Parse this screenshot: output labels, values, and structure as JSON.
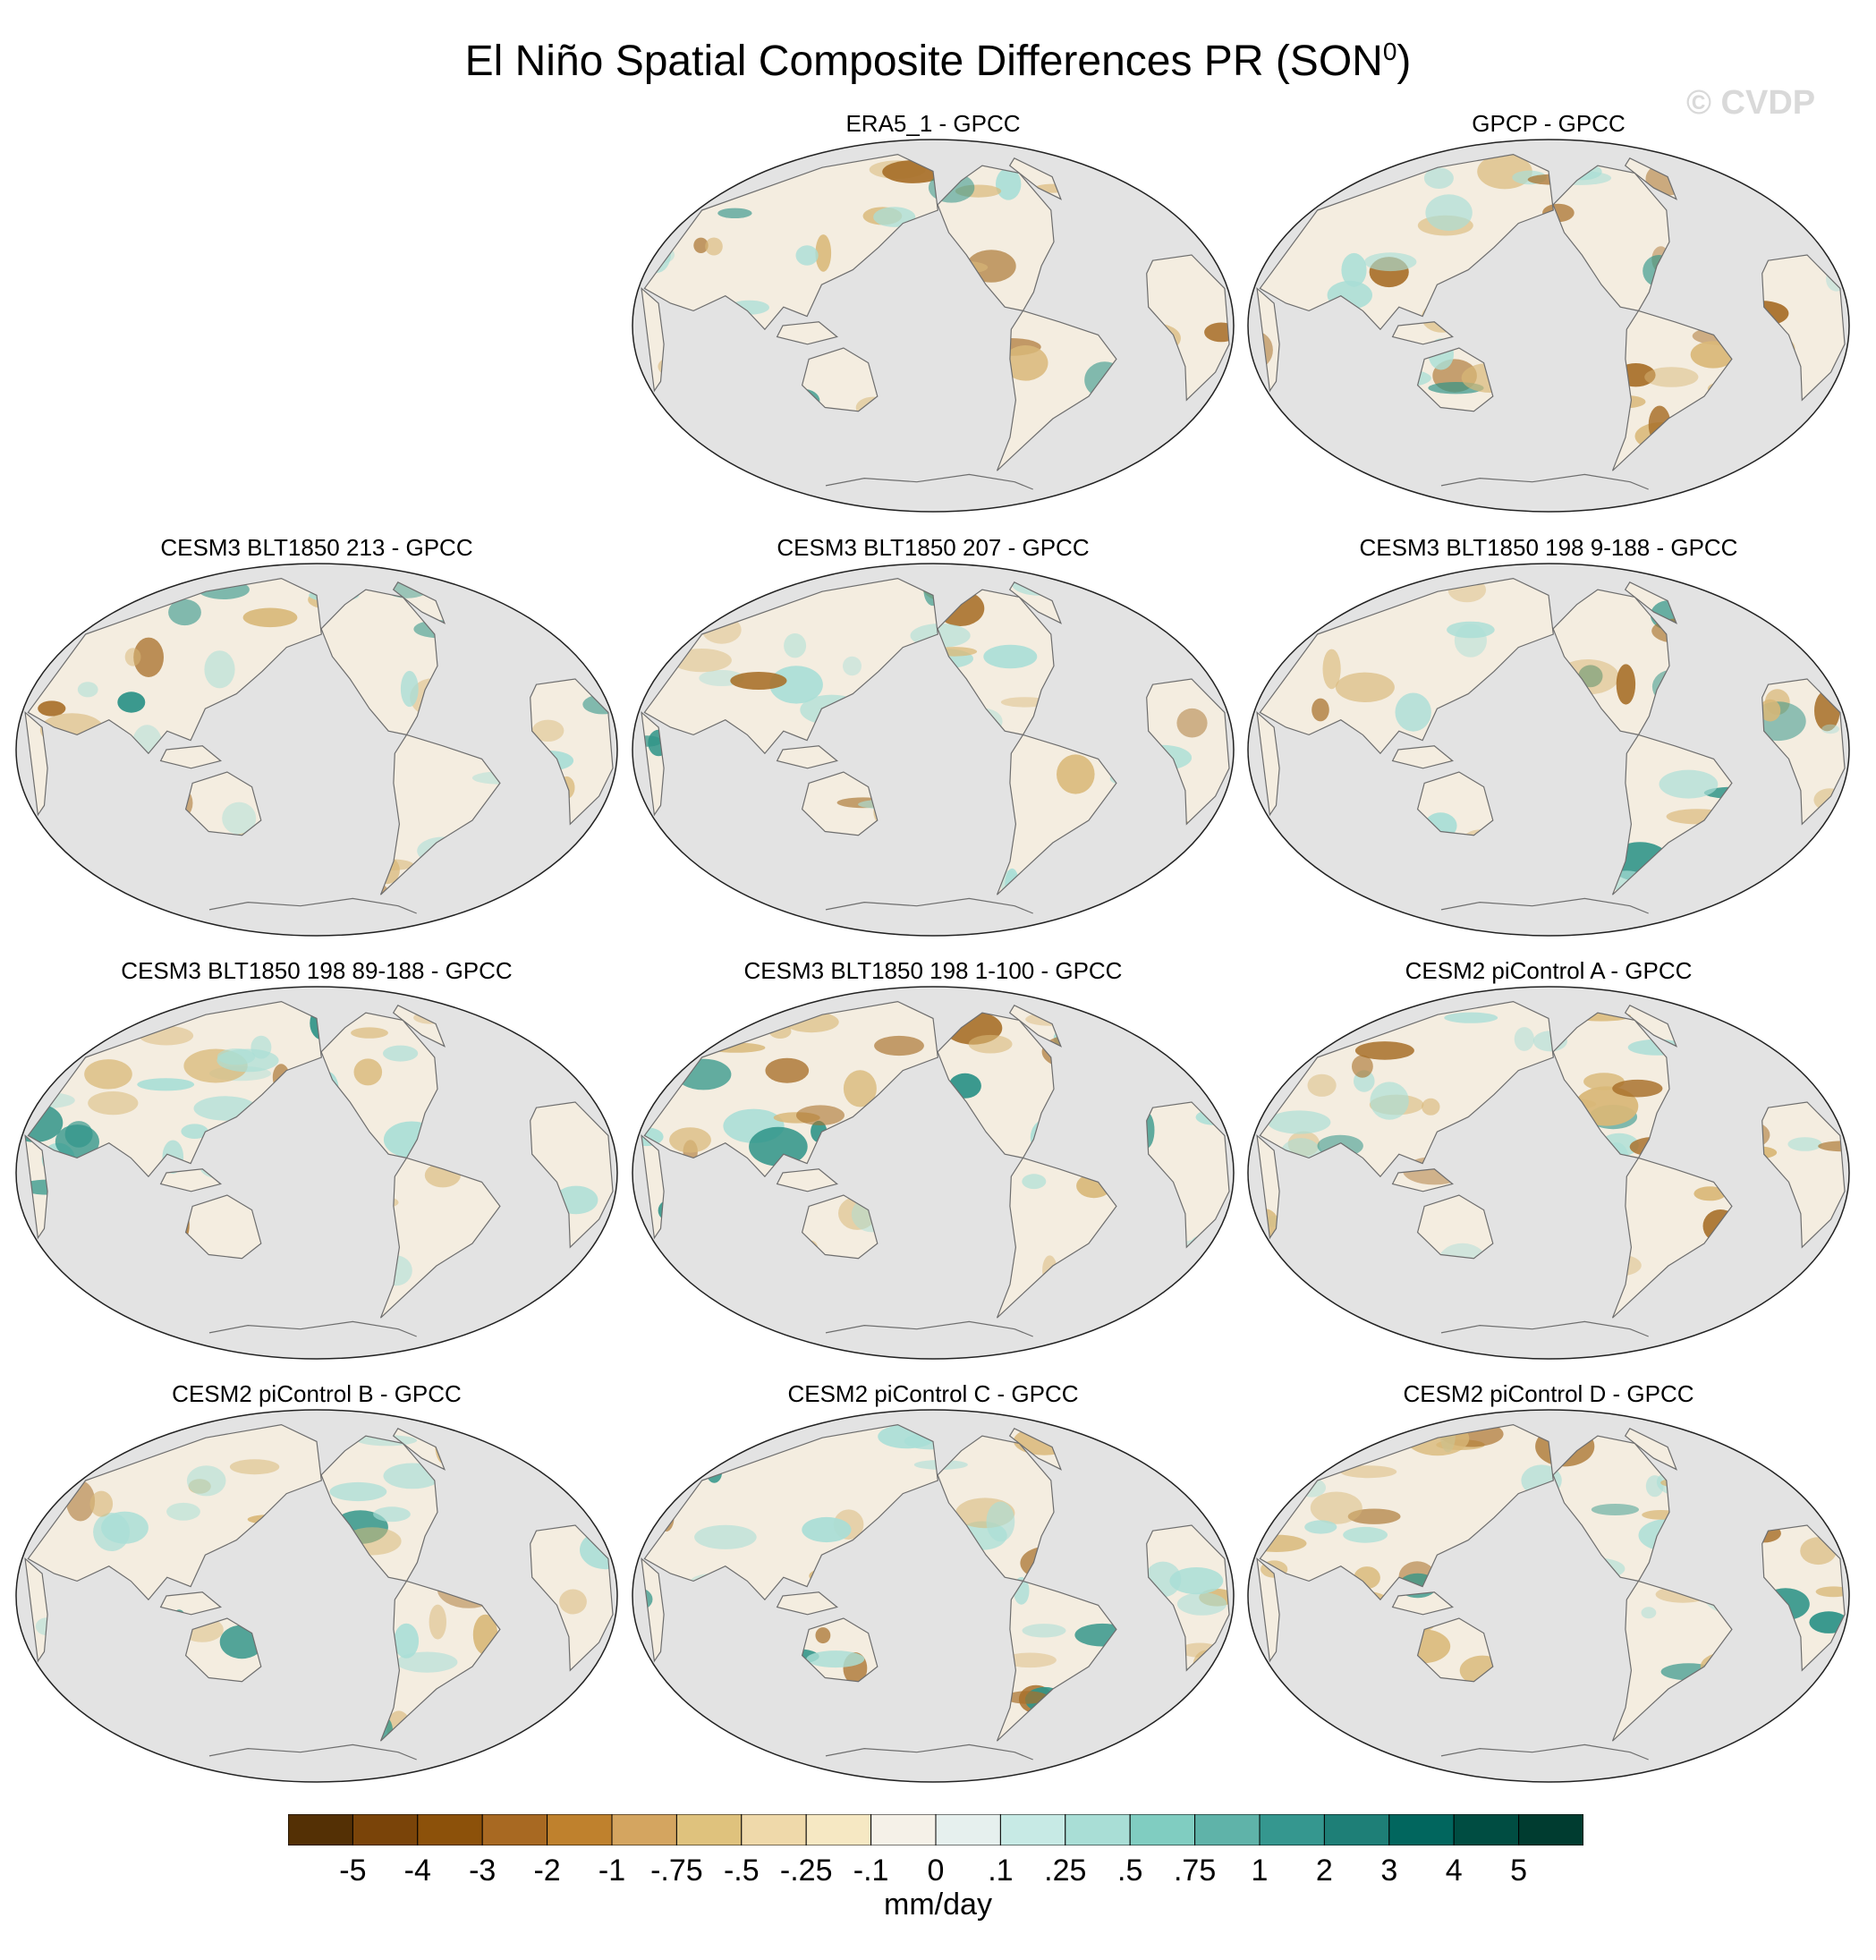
{
  "figure": {
    "title_main": "El Niño Spatial Composite Differences PR (SON",
    "title_sup": "0",
    "title_close": ")",
    "watermark": "© CVDP"
  },
  "panels": [
    {
      "title": "ERA5_1 - GPCC"
    },
    {
      "title": "GPCP - GPCC"
    },
    {
      "title": "CESM3 BLT1850 213 - GPCC"
    },
    {
      "title": "CESM3 BLT1850 207 - GPCC"
    },
    {
      "title": "CESM3 BLT1850 198 9-188 - GPCC"
    },
    {
      "title": "CESM3 BLT1850 198 89-188 - GPCC"
    },
    {
      "title": "CESM3 BLT1850 198 1-100 - GPCC"
    },
    {
      "title": "CESM2 piControl A - GPCC"
    },
    {
      "title": "CESM2 piControl B - GPCC"
    },
    {
      "title": "CESM2 piControl C - GPCC"
    },
    {
      "title": "CESM2 piControl D - GPCC"
    }
  ],
  "colorbar": {
    "labels": [
      "-5",
      "-4",
      "-3",
      "-2",
      "-1",
      "-.75",
      "-.5",
      "-.25",
      "-.1",
      "0",
      ".1",
      ".25",
      ".5",
      ".75",
      "1",
      "2",
      "3",
      "4",
      "5"
    ],
    "colors": [
      "#543005",
      "#7a4409",
      "#8c510a",
      "#a86922",
      "#bf812d",
      "#d4a560",
      "#dfc27d",
      "#efd9aa",
      "#f6e8c3",
      "#f5f1e8",
      "#e6f0ee",
      "#c7eae5",
      "#a9ded6",
      "#80cdc1",
      "#5fb3a9",
      "#35978f",
      "#1e7f77",
      "#01665e",
      "#004d42",
      "#003c30"
    ],
    "unit": "mm/day"
  },
  "map_colors": {
    "ocean": "#e3e3e3",
    "land": "#f4ede0",
    "coast": "#6e6e6e",
    "dry": "#d9b878",
    "dry_strong": "#a8702a",
    "wet": "#a9ded6",
    "wet_strong": "#2f9488"
  }
}
